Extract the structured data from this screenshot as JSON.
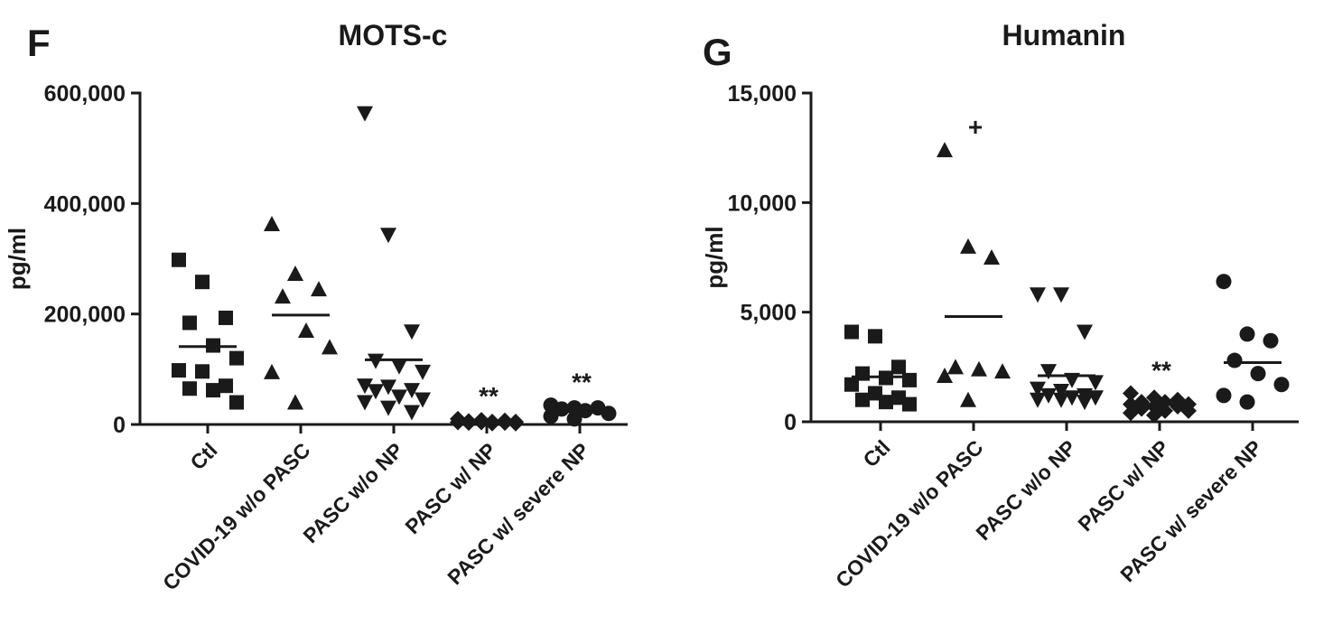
{
  "chart_data": [
    {
      "type": "strip",
      "panel": "F",
      "title": "MOTS-c",
      "ylabel": "pg/ml",
      "color": "#1a1a1a",
      "categories": [
        "Ctl",
        "COVID-19 w/o PASC",
        "PASC w/o NP",
        "PASC w/ NP",
        "PASC w/ severe NP"
      ],
      "markers": [
        "square",
        "triangle-up",
        "triangle-down",
        "diamond",
        "circle"
      ],
      "points": [
        [
          298000,
          258000,
          193000,
          184000,
          143000,
          120000,
          98000,
          96000,
          70000,
          65000,
          62000,
          40000
        ],
        [
          363000,
          273000,
          245000,
          232000,
          170000,
          140000,
          95000,
          40000
        ],
        [
          563000,
          343000,
          168000,
          115000,
          105000,
          95000,
          70000,
          68000,
          62000,
          60000,
          50000,
          45000,
          40000,
          30000,
          22000
        ],
        [
          10000,
          8000,
          7000,
          6000,
          5000,
          5000,
          4000,
          4000,
          3000,
          3000,
          2000,
          2000
        ],
        [
          35000,
          30000,
          30000,
          28000,
          25000,
          20000,
          15000,
          10000
        ]
      ],
      "means": [
        141000,
        198000,
        117000,
        6000,
        27000
      ],
      "annotations": [
        null,
        null,
        null,
        "**",
        "**"
      ],
      "ylim": [
        0,
        600000
      ],
      "yticks": [
        0,
        {
          "value": 200000,
          "label": "200,000"
        },
        {
          "value": 400000,
          "label": "400,000"
        },
        {
          "value": 600000,
          "label": "600,000"
        }
      ]
    },
    {
      "type": "strip",
      "panel": "G",
      "title": "Humanin",
      "ylabel": "pg/ml",
      "color": "#1a1a1a",
      "categories": [
        "Ctl",
        "COVID-19 w/o PASC",
        "PASC w/o NP",
        "PASC w/ NP",
        "PASC w/ severe NP"
      ],
      "markers": [
        "square",
        "triangle-up",
        "triangle-down",
        "diamond",
        "circle"
      ],
      "points": [
        [
          4100,
          3900,
          2500,
          2200,
          2000,
          1900,
          1700,
          1300,
          1100,
          1000,
          900,
          800
        ],
        [
          12400,
          8000,
          7500,
          2500,
          2400,
          2300,
          2100,
          1000
        ],
        [
          5800,
          5800,
          4100,
          2300,
          1900,
          1800,
          1500,
          1400,
          1200,
          1200,
          1100,
          1100,
          1000,
          1000,
          900
        ],
        [
          1300,
          1100,
          1000,
          900,
          900,
          800,
          800,
          700,
          700,
          600,
          500,
          500,
          400,
          300
        ],
        [
          6400,
          4000,
          3700,
          2800,
          2200,
          1700,
          1200,
          900
        ]
      ],
      "means": [
        2050,
        4800,
        2100,
        800,
        2700
      ],
      "annotations": [
        null,
        "+",
        null,
        "**",
        null
      ],
      "ylim": [
        0,
        15000
      ],
      "yticks": [
        0,
        {
          "value": 5000,
          "label": "5,000"
        },
        {
          "value": 10000,
          "label": "10,000"
        },
        {
          "value": 15000,
          "label": "15,000"
        }
      ]
    }
  ]
}
